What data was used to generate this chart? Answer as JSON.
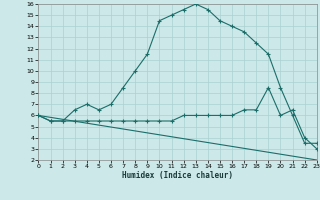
{
  "title": "",
  "xlabel": "Humidex (Indice chaleur)",
  "bg_color": "#cce8e8",
  "grid_color": "#aad0d0",
  "line_color": "#1a6e6a",
  "line1_x": [
    0,
    1,
    2,
    3,
    4,
    5,
    6,
    7,
    8,
    9,
    10,
    11,
    12,
    13,
    14,
    15,
    16,
    17,
    18,
    19,
    20,
    21,
    22,
    23
  ],
  "line1_y": [
    6.0,
    5.5,
    5.5,
    6.5,
    7.0,
    6.5,
    7.0,
    8.5,
    10.0,
    11.5,
    14.5,
    15.0,
    15.5,
    16.0,
    15.5,
    14.5,
    14.0,
    13.5,
    12.5,
    11.5,
    8.5,
    6.0,
    3.5,
    3.5
  ],
  "line2_x": [
    0,
    1,
    2,
    3,
    4,
    5,
    6,
    7,
    8,
    9,
    10,
    11,
    12,
    13,
    14,
    15,
    16,
    17,
    18,
    19,
    20,
    21,
    22,
    23
  ],
  "line2_y": [
    6.0,
    5.5,
    5.5,
    5.5,
    5.5,
    5.5,
    5.5,
    5.5,
    5.5,
    5.5,
    5.5,
    5.5,
    6.0,
    6.0,
    6.0,
    6.0,
    6.0,
    6.5,
    6.5,
    8.5,
    6.0,
    6.5,
    4.0,
    3.0
  ],
  "line3_x": [
    0,
    23
  ],
  "line3_y": [
    6.0,
    2.0
  ],
  "xlim": [
    0,
    23
  ],
  "ylim": [
    2,
    16
  ],
  "yticks": [
    2,
    3,
    4,
    5,
    6,
    7,
    8,
    9,
    10,
    11,
    12,
    13,
    14,
    15,
    16
  ],
  "xticks": [
    0,
    1,
    2,
    3,
    4,
    5,
    6,
    7,
    8,
    9,
    10,
    11,
    12,
    13,
    14,
    15,
    16,
    17,
    18,
    19,
    20,
    21,
    22,
    23
  ]
}
